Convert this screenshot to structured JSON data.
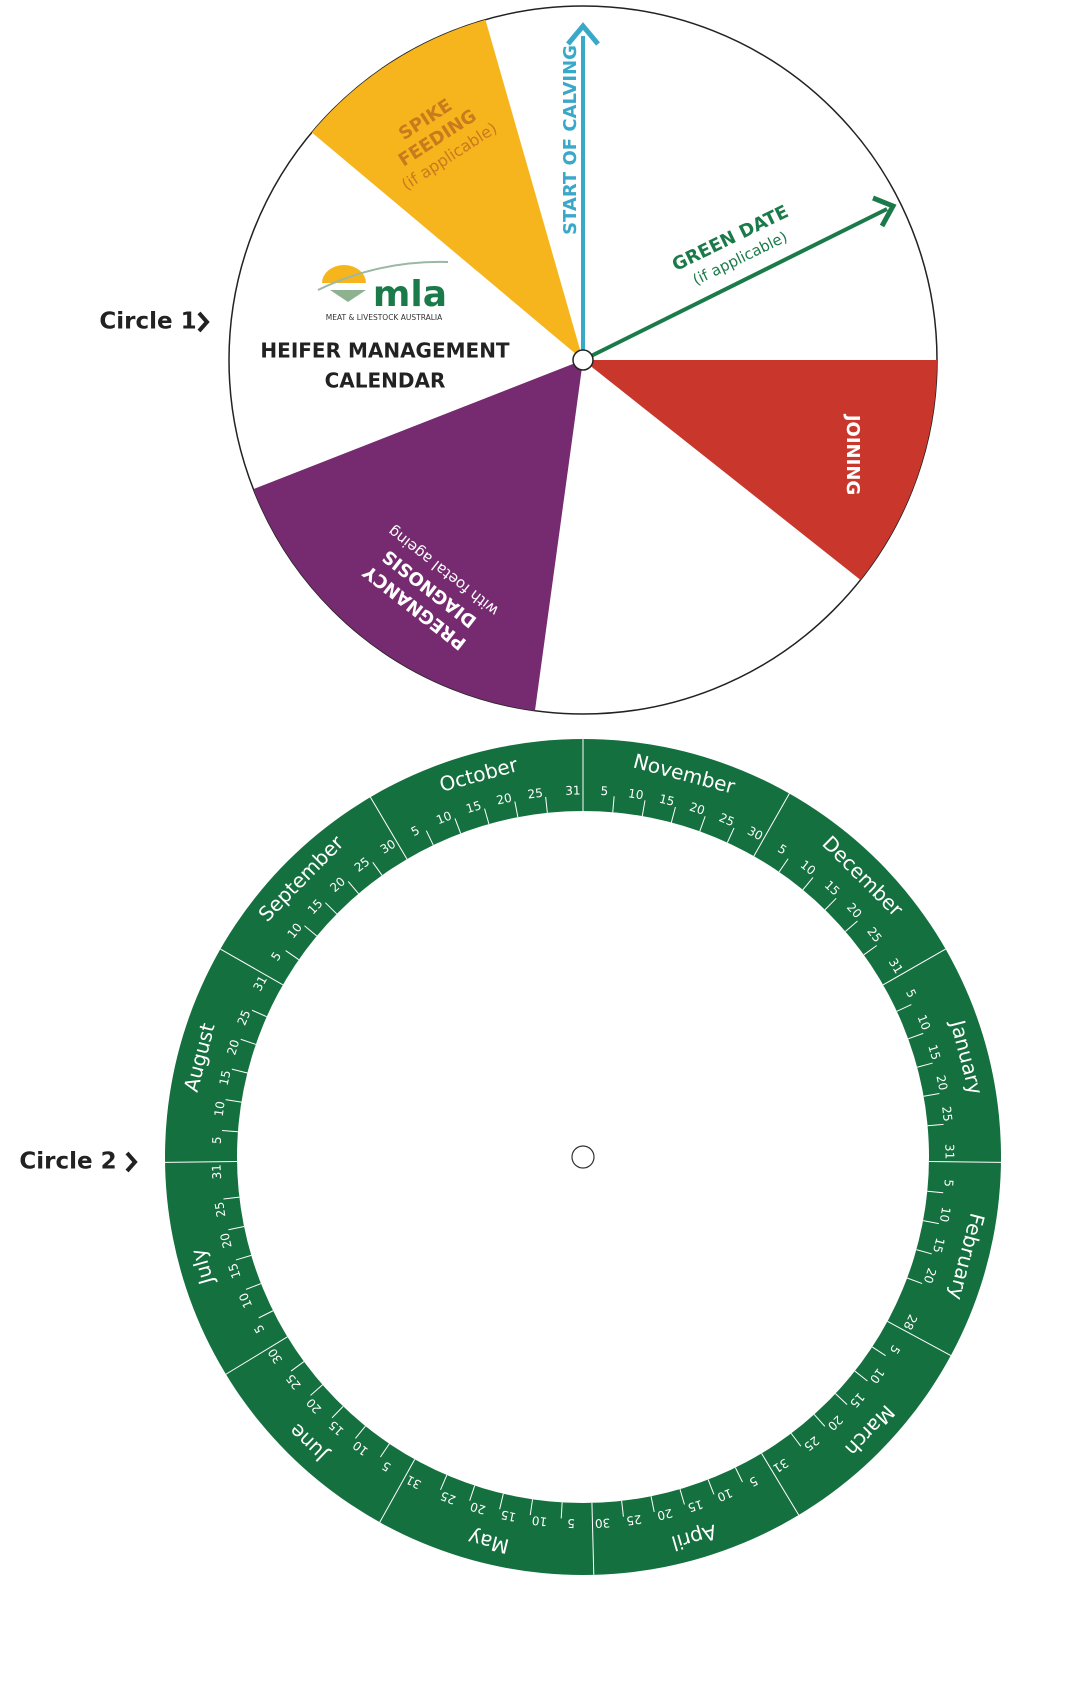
{
  "labels": {
    "circle1": "Circle 1",
    "circle2": "Circle 2"
  },
  "circle1": {
    "spike_feeding": [
      "SPIKE",
      "FEEDING",
      "(if applicable)"
    ],
    "start_of_calving": "START OF CALVING",
    "green_date": [
      "GREEN DATE",
      "(if applicable)"
    ],
    "joining": "JOINING",
    "pregnancy_diagnosis": [
      "PREGNANCY",
      "DIAGNOSIS",
      "with foetal ageing"
    ],
    "logo": {
      "name": "mla",
      "tagline": "MEAT & LIVESTOCK AUSTRALIA"
    },
    "title": [
      "HEIFER MANAGEMENT",
      "CALENDAR"
    ]
  },
  "circle2": {
    "months": [
      {
        "name": "January",
        "days": [
          5,
          10,
          15,
          20,
          25,
          31
        ]
      },
      {
        "name": "February",
        "days": [
          5,
          10,
          15,
          20,
          28
        ]
      },
      {
        "name": "March",
        "days": [
          5,
          10,
          15,
          20,
          25,
          31
        ]
      },
      {
        "name": "April",
        "days": [
          5,
          10,
          15,
          20,
          25,
          30
        ]
      },
      {
        "name": "May",
        "days": [
          5,
          10,
          15,
          20,
          25,
          31
        ]
      },
      {
        "name": "June",
        "days": [
          5,
          10,
          15,
          20,
          25,
          30
        ]
      },
      {
        "name": "July",
        "days": [
          5,
          10,
          15,
          20,
          25,
          31
        ]
      },
      {
        "name": "August",
        "days": [
          5,
          10,
          15,
          20,
          25,
          31
        ]
      },
      {
        "name": "September",
        "days": [
          5,
          10,
          15,
          20,
          25,
          30
        ]
      },
      {
        "name": "October",
        "days": [
          5,
          10,
          15,
          20,
          25,
          31
        ]
      },
      {
        "name": "November",
        "days": [
          5,
          10,
          15,
          20,
          25,
          30
        ]
      },
      {
        "name": "December",
        "days": [
          5,
          10,
          15,
          20,
          25,
          31
        ]
      }
    ]
  }
}
